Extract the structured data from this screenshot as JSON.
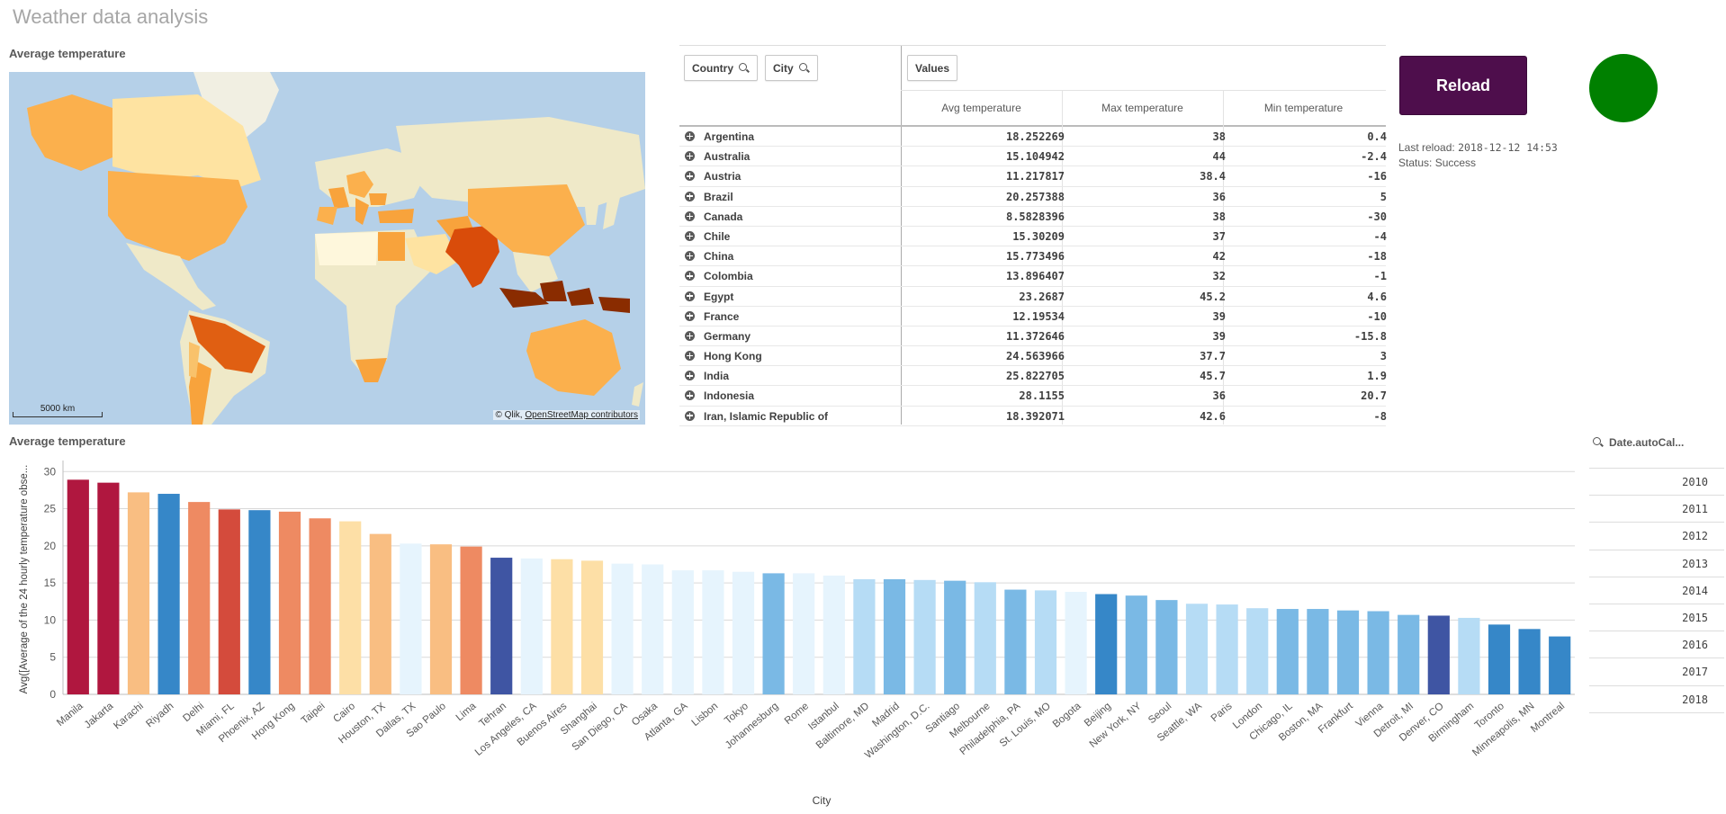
{
  "app": {
    "title": "Weather data analysis"
  },
  "map_panel": {
    "title": "Average temperature",
    "scale_label": "5000 km",
    "attribution_prefix": "© Qlik,",
    "attribution_link": "OpenStreetMap contributors"
  },
  "pivot": {
    "dim_chips": [
      {
        "label": "Country",
        "icon": "search-icon"
      },
      {
        "label": "City",
        "icon": "search-icon"
      }
    ],
    "values_chip": "Values",
    "columns": [
      "Avg temperature",
      "Max temperature",
      "Min temperature"
    ],
    "rows": [
      {
        "country": "Argentina",
        "avg": "18.252269",
        "max": "38",
        "min": "0.4"
      },
      {
        "country": "Australia",
        "avg": "15.104942",
        "max": "44",
        "min": "-2.4"
      },
      {
        "country": "Austria",
        "avg": "11.217817",
        "max": "38.4",
        "min": "-16"
      },
      {
        "country": "Brazil",
        "avg": "20.257388",
        "max": "36",
        "min": "5"
      },
      {
        "country": "Canada",
        "avg": "8.5828396",
        "max": "38",
        "min": "-30"
      },
      {
        "country": "Chile",
        "avg": "15.30209",
        "max": "37",
        "min": "-4"
      },
      {
        "country": "China",
        "avg": "15.773496",
        "max": "42",
        "min": "-18"
      },
      {
        "country": "Colombia",
        "avg": "13.896407",
        "max": "32",
        "min": "-1"
      },
      {
        "country": "Egypt",
        "avg": "23.2687",
        "max": "45.2",
        "min": "4.6"
      },
      {
        "country": "France",
        "avg": "12.19534",
        "max": "39",
        "min": "-10"
      },
      {
        "country": "Germany",
        "avg": "11.372646",
        "max": "39",
        "min": "-15.8"
      },
      {
        "country": "Hong Kong",
        "avg": "24.563966",
        "max": "37.7",
        "min": "3"
      },
      {
        "country": "India",
        "avg": "25.822705",
        "max": "45.7",
        "min": "1.9"
      },
      {
        "country": "Indonesia",
        "avg": "28.1155",
        "max": "36",
        "min": "20.7"
      },
      {
        "country": "Iran, Islamic Republic of",
        "avg": "18.392071",
        "max": "42.6",
        "min": "-8"
      }
    ]
  },
  "reload": {
    "button_label": "Reload",
    "last_reload_label": "Last reload:",
    "last_reload_value": "2018-12-12 14:53",
    "status_text": "Status: Success",
    "status_color": "#008000",
    "button_color": "#4e0e4c"
  },
  "bar_panel": {
    "title": "Average temperature"
  },
  "chart_data": {
    "type": "bar",
    "xlabel": "City",
    "ylabel": "Avg([Average of the 24 hourly temperature obse...",
    "ylim": [
      0,
      31
    ],
    "yticks": [
      0,
      5,
      10,
      15,
      20,
      25,
      30
    ],
    "grid": true,
    "categories": [
      "Manila",
      "Jakarta",
      "Karachi",
      "Riyadh",
      "Delhi",
      "Miami, FL",
      "Phoenix, AZ",
      "Hong Kong",
      "Taipei",
      "Cairo",
      "Houston, TX",
      "Dallas, TX",
      "Sao Paulo",
      "Lima",
      "Tehran",
      "Los Angeles, CA",
      "Buenos Aires",
      "Shanghai",
      "San Diego, CA",
      "Osaka",
      "Atlanta, GA",
      "Lisbon",
      "Tokyo",
      "Johannesburg",
      "Rome",
      "Istanbul",
      "Baltimore, MD",
      "Madrid",
      "Washington, D.C.",
      "Santiago",
      "Melbourne",
      "Philadelphia, PA",
      "St. Louis, MO",
      "Bogota",
      "Beijing",
      "New York, NY",
      "Seoul",
      "Seattle, WA",
      "Paris",
      "London",
      "Chicago, IL",
      "Boston, MA",
      "Frankfurt",
      "Vienna",
      "Detroit, MI",
      "Denver, CO",
      "Birmingham",
      "Toronto",
      "Minneapolis, MN",
      "Montreal"
    ],
    "values": [
      28.9,
      28.5,
      27.2,
      27.0,
      25.9,
      24.9,
      24.8,
      24.6,
      23.7,
      23.3,
      21.6,
      20.3,
      20.2,
      19.9,
      18.4,
      18.3,
      18.2,
      18.0,
      17.6,
      17.5,
      16.7,
      16.7,
      16.5,
      16.3,
      16.3,
      16.0,
      15.5,
      15.5,
      15.4,
      15.3,
      15.1,
      14.1,
      14.0,
      13.8,
      13.5,
      13.3,
      12.7,
      12.2,
      12.1,
      11.6,
      11.5,
      11.5,
      11.3,
      11.2,
      10.7,
      10.6,
      10.3,
      9.4,
      8.8,
      7.8
    ],
    "colors": [
      "#b0173f",
      "#b0173f",
      "#f9be82",
      "#3687c8",
      "#ee8a62",
      "#d44b3c",
      "#3687c8",
      "#ee8a62",
      "#ee8a62",
      "#fddfa6",
      "#f9be82",
      "#e6f4fd",
      "#f9be82",
      "#ee8a62",
      "#3f55a3",
      "#e6f4fd",
      "#fddfa6",
      "#fddfa6",
      "#e6f4fd",
      "#e6f4fd",
      "#e6f4fd",
      "#e6f4fd",
      "#e6f4fd",
      "#7ab9e5",
      "#e6f4fd",
      "#e6f4fd",
      "#b6dcf5",
      "#7ab9e5",
      "#b6dcf5",
      "#7ab9e5",
      "#b6dcf5",
      "#7ab9e5",
      "#b6dcf5",
      "#e6f4fd",
      "#3687c8",
      "#7ab9e5",
      "#7ab9e5",
      "#b6dcf5",
      "#b6dcf5",
      "#b6dcf5",
      "#7ab9e5",
      "#7ab9e5",
      "#7ab9e5",
      "#7ab9e5",
      "#7ab9e5",
      "#3f55a3",
      "#b6dcf5",
      "#3687c8",
      "#3687c8",
      "#3687c8"
    ]
  },
  "date_filter": {
    "title": "Date.autoCal...",
    "icon": "search-icon",
    "years": [
      "2010",
      "2011",
      "2012",
      "2013",
      "2014",
      "2015",
      "2016",
      "2017",
      "2018"
    ]
  }
}
